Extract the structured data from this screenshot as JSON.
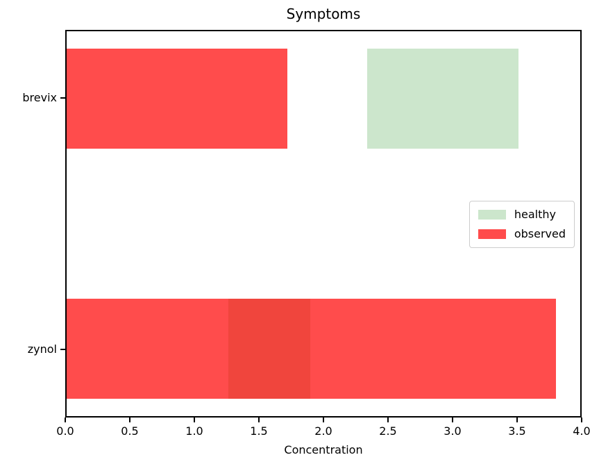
{
  "figure": {
    "title": "Symptoms",
    "xlabel": "Concentration"
  },
  "chart_data": {
    "type": "bar",
    "orientation": "horizontal",
    "title": "Symptoms",
    "xlabel": "Concentration",
    "ylabel": "",
    "categories": [
      "brevix",
      "zynol"
    ],
    "series": [
      {
        "name": "healthy",
        "color": "rgba(0,128,0,0.2)",
        "ranges": [
          [
            2.34,
            3.52
          ],
          [
            1.26,
            1.9
          ]
        ]
      },
      {
        "name": "observed",
        "color": "rgba(255,0,0,0.7)",
        "ranges": [
          [
            0.0,
            1.72
          ],
          [
            0.0,
            3.81
          ]
        ]
      }
    ],
    "xlim": [
      0.0,
      4.0
    ],
    "ylim": [
      -0.27,
      1.27
    ],
    "y_positions": [
      1,
      0
    ],
    "bar_height": 0.4,
    "xtick_labels": [
      "0.0",
      "0.5",
      "1.0",
      "1.5",
      "2.0",
      "2.5",
      "3.0",
      "3.5",
      "4.0"
    ],
    "grid": false,
    "legend_position": "center right",
    "legend_labels": [
      "healthy",
      "observed"
    ],
    "colors": {
      "healthy_fill": "#cce5cc",
      "observed_fill": "#ff4d4d",
      "overlap_fill": "#f0453d",
      "spine": "#000000",
      "legend_border": "#cccccc"
    }
  }
}
